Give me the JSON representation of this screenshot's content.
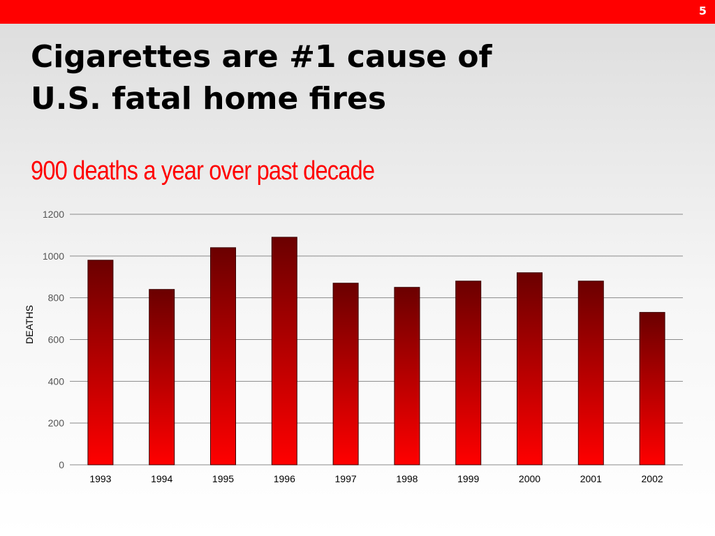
{
  "slide": {
    "number": "5",
    "title": "Cigarettes are #1 cause of\nU.S. fatal home fires",
    "subtitle": "900 deaths a year over past decade",
    "subtitle_color": "#ff0000",
    "header_bar_color": "#ff0000"
  },
  "chart_data": {
    "type": "bar",
    "categories": [
      "1993",
      "1994",
      "1995",
      "1996",
      "1997",
      "1998",
      "1999",
      "2000",
      "2001",
      "2002"
    ],
    "values": [
      980,
      840,
      1040,
      1090,
      870,
      850,
      880,
      920,
      880,
      730
    ],
    "xlabel": "",
    "ylabel": "DEATHS",
    "ylim": [
      0,
      1200
    ],
    "yticks": [
      0,
      200,
      400,
      600,
      800,
      1000,
      1200
    ],
    "grid": true,
    "legend": "none",
    "bar_color_top": "#6b0000",
    "bar_color_bottom": "#ff0000"
  }
}
